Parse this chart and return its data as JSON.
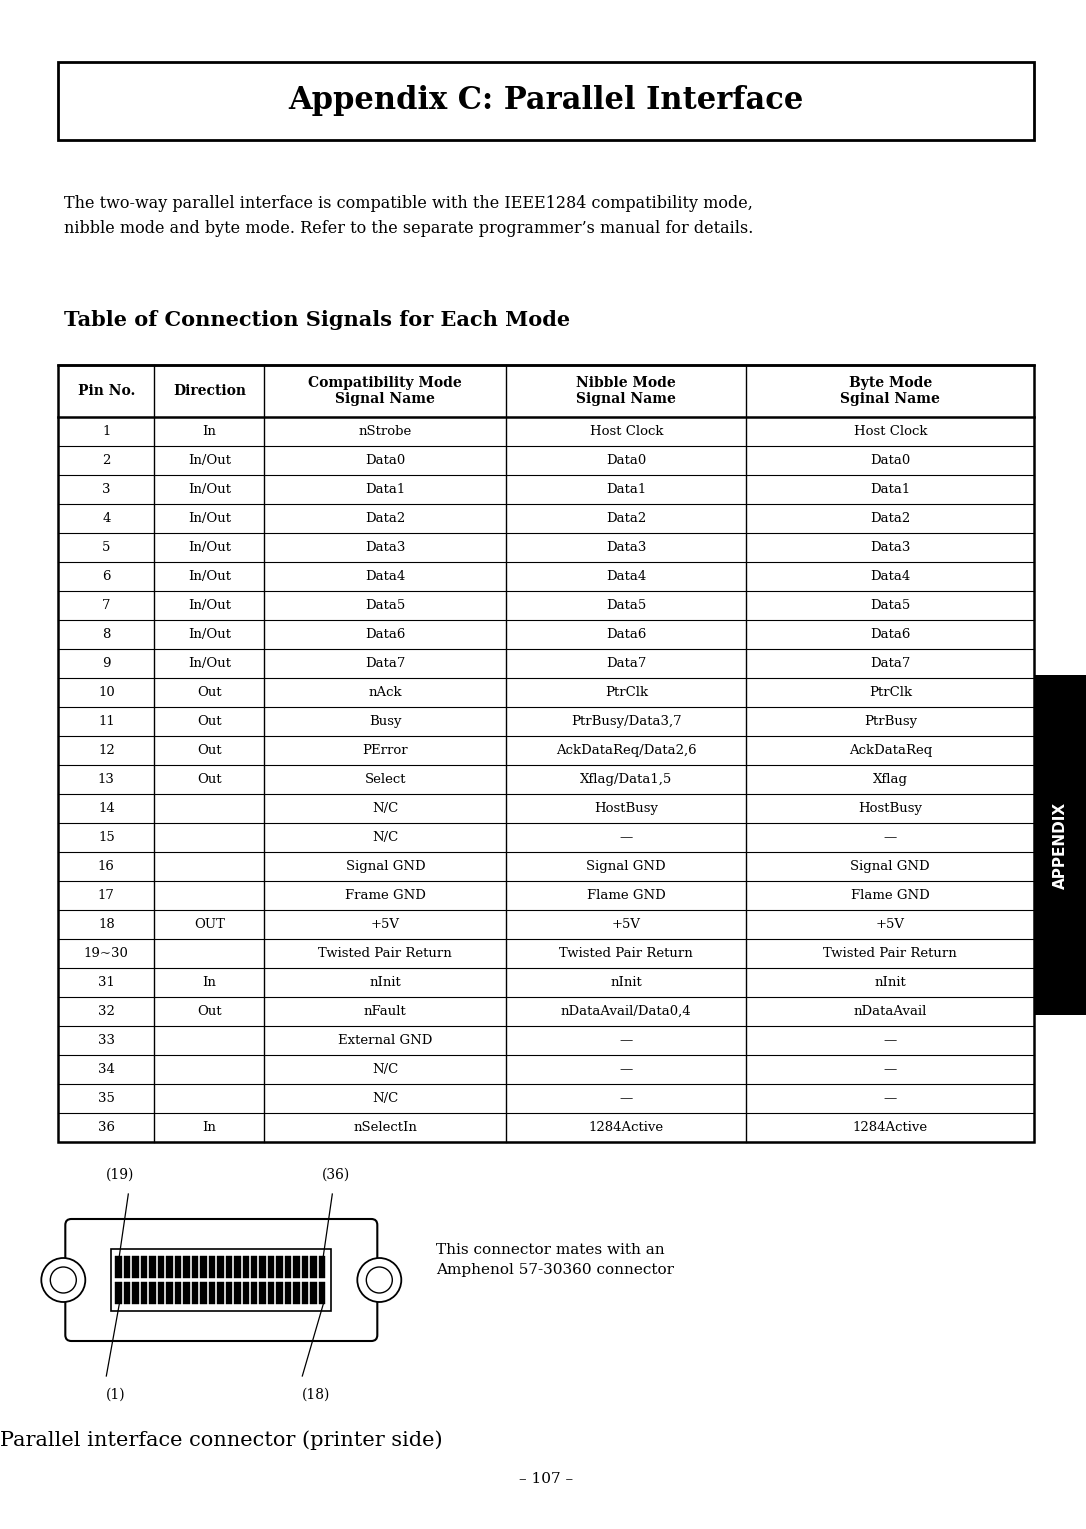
{
  "title": "Appendix C: Parallel Interface",
  "intro_text": "The two-way parallel interface is compatible with the IEEE1284 compatibility mode,\nnibble mode and byte mode. Refer to the separate programmer’s manual for details.",
  "section_title": "Table of Connection Signals for Each Mode",
  "col_headers": [
    "Pin No.",
    "Direction",
    "Compatibility Mode\nSignal Name",
    "Nibble Mode\nSignal Name",
    "Byte Mode\nSginal Name"
  ],
  "table_rows": [
    [
      "1",
      "In",
      "nStrobe",
      "Host Clock",
      "Host Clock"
    ],
    [
      "2",
      "In/Out",
      "Data0",
      "Data0",
      "Data0"
    ],
    [
      "3",
      "In/Out",
      "Data1",
      "Data1",
      "Data1"
    ],
    [
      "4",
      "In/Out",
      "Data2",
      "Data2",
      "Data2"
    ],
    [
      "5",
      "In/Out",
      "Data3",
      "Data3",
      "Data3"
    ],
    [
      "6",
      "In/Out",
      "Data4",
      "Data4",
      "Data4"
    ],
    [
      "7",
      "In/Out",
      "Data5",
      "Data5",
      "Data5"
    ],
    [
      "8",
      "In/Out",
      "Data6",
      "Data6",
      "Data6"
    ],
    [
      "9",
      "In/Out",
      "Data7",
      "Data7",
      "Data7"
    ],
    [
      "10",
      "Out",
      "nAck",
      "PtrClk",
      "PtrClk"
    ],
    [
      "11",
      "Out",
      "Busy",
      "PtrBusy/Data3,7",
      "PtrBusy"
    ],
    [
      "12",
      "Out",
      "PError",
      "AckDataReq/Data2,6",
      "AckDataReq"
    ],
    [
      "13",
      "Out",
      "Select",
      "Xflag/Data1,5",
      "Xflag"
    ],
    [
      "14",
      "",
      "N/C",
      "HostBusy",
      "HostBusy"
    ],
    [
      "15",
      "",
      "N/C",
      "—",
      "—"
    ],
    [
      "16",
      "",
      "Signal GND",
      "Signal GND",
      "Signal GND"
    ],
    [
      "17",
      "",
      "Frame GND",
      "Flame GND",
      "Flame GND"
    ],
    [
      "18",
      "OUT",
      "+5V",
      "+5V",
      "+5V"
    ],
    [
      "19~30",
      "",
      "Twisted Pair Return",
      "Twisted Pair Return",
      "Twisted Pair Return"
    ],
    [
      "31",
      "In",
      "nInit",
      "nInit",
      "nInit"
    ],
    [
      "32",
      "Out",
      "nFault",
      "nDataAvail/Data0,4",
      "nDataAvail"
    ],
    [
      "33",
      "",
      "External GND",
      "—",
      "—"
    ],
    [
      "34",
      "",
      "N/C",
      "—",
      "—"
    ],
    [
      "35",
      "",
      "N/C",
      "—",
      "—"
    ],
    [
      "36",
      "In",
      "nSelectIn",
      "1284Active",
      "1284Active"
    ]
  ],
  "connector_caption": "Parallel interface connector (printer side)",
  "connector_note": "This connector mates with an\nAmphenol 57-30360 connector",
  "page_number": "– 107 –",
  "appendix_label": "APPENDIX",
  "bg_color": "#ffffff",
  "text_color": "#000000"
}
